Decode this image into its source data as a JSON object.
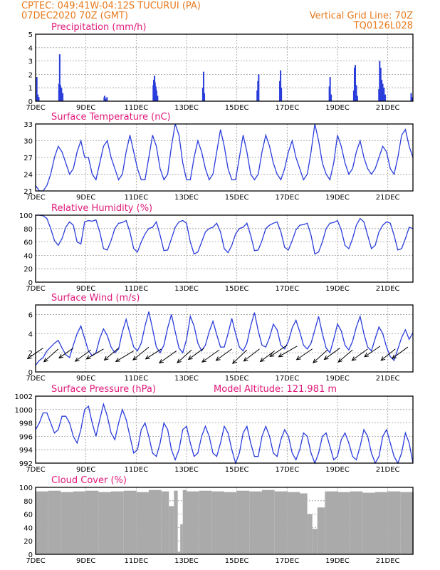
{
  "header": {
    "line1_left": "CPTEC:   049:41W-04:12S   TUCURUI (PA)",
    "line2_left": "07DEC2020 70Z (GMT)",
    "line2_right": "Vertical Grid Line: 70Z",
    "line3_right": "TQ0126L028"
  },
  "colors": {
    "series": "#2a3ddb",
    "title": "#e0197a",
    "header": "#e87a1e",
    "cloud": "#aaaaaa"
  },
  "x_axis": {
    "tick_labels": [
      "7DEC",
      "9DEC",
      "11DEC",
      "13DEC",
      "15DEC",
      "17DEC",
      "19DEC",
      "21DEC"
    ],
    "day_range": [
      7,
      22
    ]
  },
  "chart_data": [
    {
      "type": "bar",
      "id": "precip",
      "title": "Precipitation (mm/h)",
      "ylim": [
        0,
        5
      ],
      "yticks": [
        0,
        1,
        2,
        3,
        4,
        5
      ],
      "x": [
        7.02,
        7.06,
        7.1,
        7.9,
        7.93,
        7.96,
        8.0,
        8.05,
        9.7,
        9.72,
        9.75,
        9.78,
        9.81,
        11.65,
        11.67,
        11.7,
        11.72,
        11.75,
        11.78,
        11.82,
        13.62,
        13.65,
        13.68,
        15.78,
        15.81,
        15.84,
        16.68,
        16.71,
        16.74,
        18.65,
        18.68,
        18.72,
        19.62,
        19.65,
        19.68,
        19.72,
        19.76,
        20.62,
        20.65,
        20.69,
        20.73,
        20.77,
        20.82,
        20.87,
        21.9,
        21.94
      ],
      "values": [
        1.8,
        0.5,
        0.3,
        1.3,
        3.5,
        1.2,
        1.0,
        0.6,
        0.3,
        0.4,
        0.2,
        0.1,
        0.3,
        1.2,
        1.6,
        1.9,
        1.4,
        1.1,
        0.8,
        0.4,
        1.0,
        2.2,
        0.6,
        0.8,
        1.5,
        2.0,
        1.5,
        2.3,
        1.0,
        1.1,
        1.8,
        0.5,
        0.8,
        2.5,
        2.7,
        1.2,
        0.4,
        0.9,
        3.0,
        2.5,
        1.6,
        1.3,
        1.0,
        0.5,
        0.6,
        0.3
      ]
    },
    {
      "type": "line",
      "id": "temp",
      "title": "Surface Temperature (nC)",
      "ylim": [
        21,
        33
      ],
      "yticks": [
        21,
        24,
        27,
        30,
        33
      ],
      "x": [
        7.0,
        7.15,
        7.3,
        7.45,
        7.6,
        7.75,
        7.9,
        8.05,
        8.2,
        8.35,
        8.5,
        8.65,
        8.8,
        8.95,
        9.1,
        9.25,
        9.4,
        9.55,
        9.7,
        9.85,
        10.0,
        10.15,
        10.3,
        10.45,
        10.6,
        10.75,
        10.9,
        11.05,
        11.2,
        11.35,
        11.5,
        11.65,
        11.8,
        11.95,
        12.1,
        12.25,
        12.4,
        12.55,
        12.7,
        12.85,
        13.0,
        13.15,
        13.3,
        13.45,
        13.6,
        13.75,
        13.9,
        14.05,
        14.2,
        14.35,
        14.5,
        14.65,
        14.8,
        14.95,
        15.1,
        15.25,
        15.4,
        15.55,
        15.7,
        15.85,
        16.0,
        16.15,
        16.3,
        16.45,
        16.6,
        16.75,
        16.9,
        17.05,
        17.2,
        17.35,
        17.5,
        17.65,
        17.8,
        17.95,
        18.1,
        18.25,
        18.4,
        18.55,
        18.7,
        18.85,
        19.0,
        19.15,
        19.3,
        19.45,
        19.6,
        19.75,
        19.9,
        20.05,
        20.2,
        20.35,
        20.5,
        20.65,
        20.8,
        20.95,
        21.1,
        21.25,
        21.4,
        21.55,
        21.7,
        21.85,
        22.0
      ],
      "values": [
        22,
        21,
        21,
        22,
        24,
        27,
        29,
        28,
        26,
        24,
        25,
        28,
        30,
        27,
        27,
        24,
        23,
        26,
        29,
        30,
        27,
        25,
        23,
        24,
        28,
        31,
        28,
        25,
        23,
        23,
        27,
        31,
        29,
        25,
        23,
        24,
        29,
        33,
        31,
        26,
        23,
        23,
        27,
        30,
        28,
        25,
        23,
        24,
        28,
        32,
        29,
        25,
        23,
        23,
        27,
        31,
        28,
        24,
        23,
        24,
        28,
        31,
        29,
        26,
        24,
        23,
        25,
        28,
        30,
        27,
        25,
        23,
        24,
        28,
        33,
        30,
        26,
        24,
        23,
        26,
        31,
        29,
        26,
        24,
        25,
        28,
        30,
        27,
        25,
        24,
        25,
        27,
        29,
        28,
        25,
        24,
        27,
        31,
        32,
        29,
        27
      ]
    },
    {
      "type": "line",
      "id": "rh",
      "title": "Relative Humidity (%)",
      "ylim": [
        0,
        100
      ],
      "yticks": [
        0,
        20,
        40,
        60,
        80,
        100
      ],
      "x": [
        7.0,
        7.15,
        7.3,
        7.45,
        7.6,
        7.75,
        7.9,
        8.05,
        8.2,
        8.35,
        8.5,
        8.65,
        8.8,
        8.95,
        9.1,
        9.25,
        9.4,
        9.55,
        9.7,
        9.85,
        10.0,
        10.15,
        10.3,
        10.45,
        10.6,
        10.75,
        10.9,
        11.05,
        11.2,
        11.35,
        11.5,
        11.65,
        11.8,
        11.95,
        12.1,
        12.25,
        12.4,
        12.55,
        12.7,
        12.85,
        13.0,
        13.15,
        13.3,
        13.45,
        13.6,
        13.75,
        13.9,
        14.05,
        14.2,
        14.35,
        14.5,
        14.65,
        14.8,
        14.95,
        15.1,
        15.25,
        15.4,
        15.55,
        15.7,
        15.85,
        16.0,
        16.15,
        16.3,
        16.45,
        16.6,
        16.75,
        16.9,
        17.05,
        17.2,
        17.35,
        17.5,
        17.65,
        17.8,
        17.95,
        18.1,
        18.25,
        18.4,
        18.55,
        18.7,
        18.85,
        19.0,
        19.15,
        19.3,
        19.45,
        19.6,
        19.75,
        19.9,
        20.05,
        20.2,
        20.35,
        20.5,
        20.65,
        20.8,
        20.95,
        21.1,
        21.25,
        21.4,
        21.55,
        21.7,
        21.85,
        22.0
      ],
      "values": [
        100,
        100,
        99,
        95,
        80,
        62,
        55,
        65,
        82,
        90,
        85,
        60,
        57,
        90,
        92,
        91,
        93,
        75,
        50,
        48,
        62,
        80,
        88,
        89,
        92,
        75,
        50,
        45,
        60,
        72,
        80,
        82,
        90,
        70,
        47,
        48,
        65,
        82,
        90,
        92,
        88,
        60,
        42,
        45,
        60,
        75,
        80,
        82,
        88,
        75,
        50,
        44,
        55,
        72,
        80,
        82,
        88,
        70,
        47,
        48,
        62,
        80,
        85,
        88,
        90,
        75,
        52,
        48,
        62,
        78,
        85,
        86,
        88,
        70,
        42,
        45,
        60,
        80,
        88,
        89,
        92,
        78,
        55,
        50,
        65,
        85,
        95,
        90,
        70,
        50,
        55,
        75,
        85,
        90,
        88,
        70,
        48,
        50,
        65,
        82,
        80
      ]
    },
    {
      "type": "line",
      "id": "wind",
      "title": "Surface Wind (m/s)",
      "ylim": [
        0,
        7
      ],
      "yticks": [
        0,
        2,
        4,
        6
      ],
      "x": [
        7.0,
        7.15,
        7.3,
        7.45,
        7.6,
        7.75,
        7.9,
        8.05,
        8.2,
        8.35,
        8.5,
        8.65,
        8.8,
        8.95,
        9.1,
        9.25,
        9.4,
        9.55,
        9.7,
        9.85,
        10.0,
        10.15,
        10.3,
        10.45,
        10.6,
        10.75,
        10.9,
        11.05,
        11.2,
        11.35,
        11.5,
        11.65,
        11.8,
        11.95,
        12.1,
        12.25,
        12.4,
        12.55,
        12.7,
        12.85,
        13.0,
        13.15,
        13.3,
        13.45,
        13.6,
        13.75,
        13.9,
        14.05,
        14.2,
        14.35,
        14.5,
        14.65,
        14.8,
        14.95,
        15.1,
        15.25,
        15.4,
        15.55,
        15.7,
        15.85,
        16.0,
        16.15,
        16.3,
        16.45,
        16.6,
        16.75,
        16.9,
        17.05,
        17.2,
        17.35,
        17.5,
        17.65,
        17.8,
        17.95,
        18.1,
        18.25,
        18.4,
        18.55,
        18.7,
        18.85,
        19.0,
        19.15,
        19.3,
        19.45,
        19.6,
        19.75,
        19.9,
        20.05,
        20.2,
        20.35,
        20.5,
        20.65,
        20.8,
        20.95,
        21.1,
        21.25,
        21.4,
        21.55,
        21.7,
        21.85,
        22.0
      ],
      "values": [
        0.7,
        1.2,
        1.5,
        2.2,
        2.6,
        3.0,
        3.3,
        2.5,
        1.8,
        1.5,
        2.8,
        4.0,
        4.8,
        3.5,
        2.2,
        1.7,
        2.0,
        3.5,
        4.5,
        3.8,
        2.6,
        2.0,
        2.4,
        4.2,
        5.5,
        4.0,
        2.6,
        2.2,
        3.0,
        4.8,
        6.3,
        4.5,
        2.6,
        2.0,
        2.8,
        4.6,
        6.0,
        4.2,
        2.5,
        2.0,
        3.4,
        5.8,
        4.8,
        3.0,
        2.2,
        2.8,
        4.2,
        5.3,
        3.9,
        2.6,
        2.6,
        4.0,
        5.6,
        4.0,
        2.6,
        2.2,
        3.0,
        4.8,
        6.2,
        4.3,
        2.8,
        2.6,
        3.6,
        5.0,
        4.4,
        2.8,
        2.4,
        3.2,
        4.6,
        5.4,
        4.2,
        2.8,
        2.4,
        3.0,
        4.4,
        5.8,
        4.0,
        2.5,
        2.0,
        3.4,
        5.0,
        4.3,
        2.8,
        2.3,
        3.2,
        4.7,
        5.8,
        4.0,
        2.6,
        2.2,
        3.5,
        4.7,
        4.0,
        2.6,
        1.6,
        1.2,
        2.4,
        3.6,
        4.4,
        3.4,
        4.1
      ],
      "arrows": [
        {
          "x": 7.3,
          "y": 2.5,
          "dx": -22,
          "dy": 15
        },
        {
          "x": 7.9,
          "y": 2.4,
          "dx": -20,
          "dy": 18
        },
        {
          "x": 8.5,
          "y": 2.5,
          "dx": -20,
          "dy": 14
        },
        {
          "x": 9.2,
          "y": 2.3,
          "dx": -22,
          "dy": 16
        },
        {
          "x": 9.7,
          "y": 2.4,
          "dx": -24,
          "dy": 14
        },
        {
          "x": 10.3,
          "y": 2.5,
          "dx": -20,
          "dy": 17
        },
        {
          "x": 10.9,
          "y": 2.2,
          "dx": -25,
          "dy": 15
        },
        {
          "x": 11.5,
          "y": 2.6,
          "dx": -22,
          "dy": 18
        },
        {
          "x": 12.0,
          "y": 2.4,
          "dx": -22,
          "dy": 14
        },
        {
          "x": 12.6,
          "y": 2.2,
          "dx": -24,
          "dy": 17
        },
        {
          "x": 13.2,
          "y": 2.3,
          "dx": -20,
          "dy": 18
        },
        {
          "x": 13.7,
          "y": 2.5,
          "dx": -22,
          "dy": 16
        },
        {
          "x": 14.3,
          "y": 2.3,
          "dx": -24,
          "dy": 17
        },
        {
          "x": 14.8,
          "y": 2.4,
          "dx": -22,
          "dy": 16
        },
        {
          "x": 15.4,
          "y": 2.3,
          "dx": -20,
          "dy": 19
        },
        {
          "x": 15.9,
          "y": 2.4,
          "dx": -22,
          "dy": 17
        },
        {
          "x": 16.5,
          "y": 2.2,
          "dx": -20,
          "dy": 15
        },
        {
          "x": 17.0,
          "y": 2.8,
          "dx": -24,
          "dy": 16
        },
        {
          "x": 17.4,
          "y": 2.7,
          "dx": -26,
          "dy": 15
        },
        {
          "x": 18.0,
          "y": 2.4,
          "dx": -22,
          "dy": 15
        },
        {
          "x": 18.6,
          "y": 2.3,
          "dx": -20,
          "dy": 18
        },
        {
          "x": 19.1,
          "y": 2.5,
          "dx": -22,
          "dy": 16
        },
        {
          "x": 19.6,
          "y": 2.3,
          "dx": -20,
          "dy": 17
        },
        {
          "x": 20.2,
          "y": 2.4,
          "dx": -22,
          "dy": 16
        },
        {
          "x": 20.7,
          "y": 2.7,
          "dx": -22,
          "dy": 15
        },
        {
          "x": 21.3,
          "y": 2.4,
          "dx": -20,
          "dy": 16
        },
        {
          "x": 21.8,
          "y": 2.6,
          "dx": -22,
          "dy": 16
        }
      ]
    },
    {
      "type": "line",
      "id": "pres",
      "title": "Surface Pressure (hPa)",
      "extra_label": "Model Altitude: 121.981 m",
      "ylim": [
        992,
        1002
      ],
      "yticks": [
        992,
        994,
        996,
        998,
        1000,
        1002
      ],
      "x": [
        7.0,
        7.15,
        7.3,
        7.45,
        7.6,
        7.75,
        7.9,
        8.05,
        8.2,
        8.35,
        8.5,
        8.65,
        8.8,
        8.95,
        9.1,
        9.25,
        9.4,
        9.55,
        9.7,
        9.85,
        10.0,
        10.15,
        10.3,
        10.45,
        10.6,
        10.75,
        10.9,
        11.05,
        11.2,
        11.35,
        11.5,
        11.65,
        11.8,
        11.95,
        12.1,
        12.25,
        12.4,
        12.55,
        12.7,
        12.85,
        13.0,
        13.15,
        13.3,
        13.45,
        13.6,
        13.75,
        13.9,
        14.05,
        14.2,
        14.35,
        14.5,
        14.65,
        14.8,
        14.95,
        15.1,
        15.25,
        15.4,
        15.55,
        15.7,
        15.85,
        16.0,
        16.15,
        16.3,
        16.45,
        16.6,
        16.75,
        16.9,
        17.05,
        17.2,
        17.35,
        17.5,
        17.65,
        17.8,
        17.95,
        18.1,
        18.25,
        18.4,
        18.55,
        18.7,
        18.85,
        19.0,
        19.15,
        19.3,
        19.45,
        19.6,
        19.75,
        19.9,
        20.05,
        20.2,
        20.35,
        20.5,
        20.65,
        20.8,
        20.95,
        21.1,
        21.25,
        21.4,
        21.55,
        21.7,
        21.85,
        22.0
      ],
      "values": [
        997,
        998,
        999.5,
        999.5,
        998,
        996.5,
        997,
        999,
        999,
        998,
        996,
        995,
        997,
        1000,
        1000.5,
        998,
        996,
        998.5,
        1000.8,
        999,
        996.5,
        995.5,
        998,
        1000,
        998.5,
        996,
        993.5,
        994,
        997,
        998,
        996,
        993.5,
        993,
        995,
        998,
        997,
        994,
        992.5,
        994,
        997,
        997.5,
        995,
        993,
        993.5,
        996,
        997.5,
        996,
        993.5,
        993,
        995,
        997.5,
        996.5,
        994,
        992,
        993.5,
        996.5,
        997.5,
        995,
        993,
        993,
        996,
        997.5,
        996,
        993.5,
        993,
        995.5,
        997,
        996,
        993.5,
        992.5,
        994,
        996.5,
        996,
        993.5,
        992,
        993.5,
        996,
        996.5,
        994.5,
        992.5,
        993,
        995.5,
        996.5,
        995,
        993,
        992.5,
        994.5,
        997,
        996,
        993.5,
        992,
        993,
        996,
        997,
        995,
        993,
        992,
        993.5,
        996.5,
        995,
        992
      ]
    },
    {
      "type": "bar",
      "id": "cloud",
      "title": "Cloud Cover (%)",
      "ylim": [
        0,
        100
      ],
      "yticks": [
        0,
        20,
        40,
        60,
        80,
        100
      ],
      "x": [
        7.0,
        7.5,
        8.0,
        8.5,
        9.0,
        9.5,
        10.0,
        10.5,
        11.0,
        11.5,
        12.0,
        12.3,
        12.5,
        12.65,
        12.75,
        12.85,
        13.0,
        13.5,
        14.0,
        14.5,
        15.0,
        15.5,
        16.0,
        16.5,
        17.0,
        17.5,
        17.8,
        18.0,
        18.2,
        18.5,
        19.0,
        19.5,
        20.0,
        20.5,
        21.0,
        21.5,
        22.0
      ],
      "values": [
        94,
        95,
        93,
        94,
        95,
        93,
        94,
        95,
        93,
        96,
        94,
        72,
        95,
        4,
        45,
        96,
        94,
        95,
        94,
        93,
        95,
        94,
        96,
        94,
        93,
        91,
        60,
        38,
        70,
        94,
        93,
        94,
        92,
        93,
        94,
        93,
        94
      ]
    }
  ]
}
